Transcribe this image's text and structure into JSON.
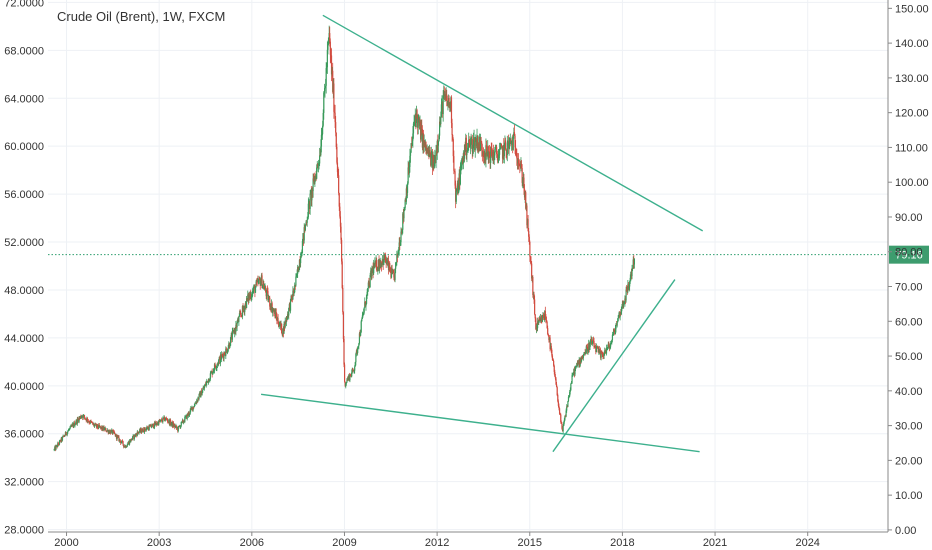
{
  "chart_data": {
    "type": "candlestick",
    "title": "Crude Oil (Brent), 1W, FXCM",
    "x_axis": {
      "range": [
        1999.4,
        2026.6
      ],
      "tick_values": [
        2000,
        2003,
        2006,
        2009,
        2012,
        2015,
        2018,
        2021,
        2024
      ],
      "tick_labels": [
        "2000",
        "2003",
        "2006",
        "2009",
        "2012",
        "2015",
        "2018",
        "2021",
        "2024"
      ]
    },
    "left_axis": {
      "range": [
        27.8,
        72.2
      ],
      "tick_values": [
        28,
        32,
        36,
        40,
        44,
        48,
        52,
        56,
        60,
        64,
        68,
        72
      ],
      "tick_labels": [
        "28.0000",
        "32.0000",
        "36.0000",
        "40.0000",
        "44.0000",
        "48.0000",
        "52.0000",
        "56.0000",
        "60.0000",
        "64.0000",
        "68.0000",
        "72.0000"
      ]
    },
    "right_axis": {
      "range": [
        -0.6,
        152.4
      ],
      "tick_values": [
        0,
        10,
        20,
        30,
        40,
        50,
        60,
        70,
        80,
        90,
        100,
        110,
        120,
        130,
        140,
        150
      ],
      "tick_labels": [
        "0.00",
        "10.00",
        "20.00",
        "30.00",
        "40.00",
        "50.00",
        "60.00",
        "70.00",
        "80.00",
        "90.00",
        "100.00",
        "110.00",
        "120.00",
        "130.00",
        "140.00",
        "150.00"
      ]
    },
    "current_price": {
      "value": 79.16,
      "label": "79.16"
    },
    "price_series": {
      "x": [
        1999.6,
        2000.0,
        2000.5,
        2000.9,
        2001.5,
        2001.9,
        2002.3,
        2002.8,
        2003.2,
        2003.6,
        2004.0,
        2004.4,
        2004.8,
        2005.2,
        2005.6,
        2005.9,
        2006.3,
        2006.6,
        2007.0,
        2007.4,
        2007.8,
        2008.2,
        2008.5,
        2008.7,
        2008.9,
        2009.0,
        2009.3,
        2009.6,
        2009.9,
        2010.3,
        2010.6,
        2010.9,
        2011.3,
        2011.6,
        2011.9,
        2012.2,
        2012.45,
        2012.6,
        2012.9,
        2013.3,
        2013.6,
        2014.0,
        2014.5,
        2014.8,
        2015.0,
        2015.2,
        2015.5,
        2015.8,
        2016.05,
        2016.4,
        2016.7,
        2017.0,
        2017.3,
        2017.6,
        2017.9,
        2018.2,
        2018.4
      ],
      "y": [
        23,
        28,
        33,
        30,
        28,
        24,
        28,
        30,
        32,
        29,
        34,
        40,
        47,
        52,
        61,
        67,
        72,
        65,
        57,
        70,
        91,
        108,
        142,
        118,
        80,
        42,
        46,
        62,
        75,
        78,
        72,
        90,
        120,
        110,
        105,
        124,
        122,
        95,
        110,
        112,
        108,
        108,
        112,
        100,
        80,
        58,
        62,
        45,
        28,
        45,
        50,
        54,
        50,
        53,
        62,
        70,
        79
      ]
    },
    "trendlines": [
      {
        "x": [
          2008.3,
          2020.6
        ],
        "y": [
          148,
          86
        ]
      },
      {
        "x": [
          2006.3,
          2020.5
        ],
        "y": [
          39,
          22.5
        ]
      },
      {
        "x": [
          2015.75,
          2019.7
        ],
        "y": [
          22.5,
          72
        ]
      }
    ]
  }
}
